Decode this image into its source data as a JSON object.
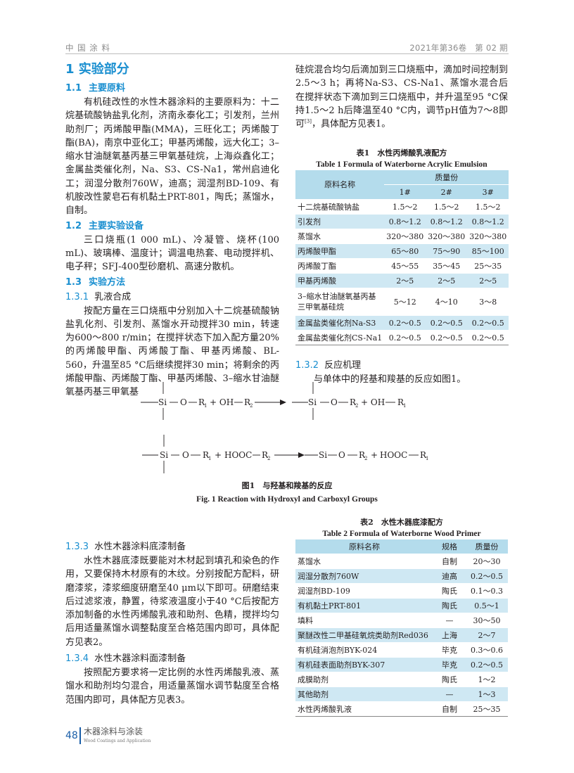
{
  "header": {
    "journal": "中 国 涂 料",
    "issue": "2021年第36卷　第 02 期"
  },
  "section1": {
    "title": "1  实验部分"
  },
  "s1_1": {
    "num": "1.1",
    "title": "主要原料",
    "para": "有机硅改性的水性木器涂料的主要原料为：十二烷基硫酸钠盐乳化剂，济南永泰化工；引发剂，兰州助剂厂；丙烯酸甲酯(MMA)，三旺化工；丙烯酸丁酯(BA)，南京中亚化工；甲基丙烯酸，远大化工；3–缩水甘油醚氧基丙基三甲氧基硅烷，上海焱鑫化工；金属盐类催化剂，Na、S3、CS-Na1，常州启迪化工；润湿分散剂760W，迪高；润湿剂BD-109、有机胺改性蒙皂石有机黏土PRT-801，陶氏；蒸馏水，自制。"
  },
  "s1_2": {
    "num": "1.2",
    "title": "主要实验设备",
    "para": "三口烧瓶(1 000 mL)、冷凝管、烧杯(100 mL)、玻璃棒、温度计；调温电热套、电动搅拌机、电子秤；SFJ-400型砂磨机、高速分散机。"
  },
  "s1_3": {
    "num": "1.3",
    "title": "实验方法"
  },
  "s1_3_1": {
    "num": "1.3.1",
    "title": "乳液合成",
    "para": "按配方量在三口烧瓶中分别加入十二烷基硫酸钠盐乳化剂、引发剂、蒸馏水开动搅拌30 min，转速为600～800 r/min；在搅拌状态下加入配方量20%的丙烯酸甲酯、丙烯酸丁酯、甲基丙烯酸、BL-560，升温至85 °C后继续搅拌30 min；将剩余的丙烯酸甲酯、丙烯酸丁酯、甲基丙烯酸、3–缩水甘油醚氧基丙基三甲氧基",
    "para_cont_a": "硅烷混合均匀后滴加到三口烧瓶中，滴加时间控制到2.5～3 h；再将Na-S3、CS-Na1、蒸馏水混合后在搅拌状态下滴加到三口烧瓶中，并升温至95 °C保持1.5～2 h后降温至40 °C内，调节pH值为7～8即可",
    "cite": "[3]",
    "para_cont_b": "，具体配方见表1。"
  },
  "table1": {
    "title_cn": "表1　水性丙烯酸乳液配方",
    "title_en": "Table 1   Formula of Waterborne Acrylic Emulsion",
    "col_name": "原料名称",
    "col_group": "质量份",
    "cols": [
      "1#",
      "2#",
      "3#"
    ],
    "rows": [
      [
        "十二烷基硫酸钠盐",
        "1.5～2",
        "1.5～2",
        "1.5～2"
      ],
      [
        "引发剂",
        "0.8～1.2",
        "0.8～1.2",
        "0.8～1.2"
      ],
      [
        "蒸馏水",
        "320～380",
        "320～380",
        "320～380"
      ],
      [
        "丙烯酸甲酯",
        "65～80",
        "75～90",
        "85～100"
      ],
      [
        "丙烯酸丁酯",
        "45～55",
        "35～45",
        "25～35"
      ],
      [
        "甲基丙烯酸",
        "2～5",
        "2～5",
        "2～5"
      ],
      [
        "3–缩水甘油醚氧基丙基三甲氧基硅烷",
        "5～12",
        "4～10",
        "3～8"
      ],
      [
        "金属盐类催化剂Na-S3",
        "0.2～0.5",
        "0.2～0.5",
        "0.2～0.5"
      ],
      [
        "金属盐类催化剂CS-Na1",
        "0.2～0.5",
        "0.2～0.5",
        "0.2～0.5"
      ]
    ]
  },
  "s1_3_2": {
    "num": "1.3.2",
    "title": "反应机理",
    "para": "与单体中的羟基和羧基的反应如图1。"
  },
  "figure1": {
    "eq1": {
      "si": "Si",
      "o": "O",
      "r1": "R",
      "r2": "R",
      "s1": "1",
      "s2": "2",
      "plus_oh": "+ OH",
      "p_si": "Si",
      "p_o": "O",
      "p_r2": "R",
      "p_s2": "2",
      "p_plus_oh": "+ OH",
      "p_r1": "R",
      "p_s1": "1"
    },
    "eq2": {
      "si": "Si",
      "o": "O",
      "r1": "R",
      "s1": "1",
      "plus": "+",
      "hooc": "HOOC",
      "r2": "R",
      "s2": "2",
      "p_si": "Si",
      "p_o": "O",
      "p_r2": "R",
      "p_s2": "2",
      "p_plus": "+",
      "p_hooc": "HOOC",
      "p_r1": "R",
      "p_s1": "1"
    },
    "caption_cn": "图1　与羟基和羧基的反应",
    "caption_en": "Fig. 1   Reaction with Hydroxyl and Carboxyl Groups"
  },
  "table2": {
    "title_cn": "表2　水性木器底漆配方",
    "title_en": "Table 2   Formula of Waterborne Wood Primer",
    "cols": [
      "原料名称",
      "规格",
      "质量份"
    ],
    "rows": [
      [
        "蒸馏水",
        "自制",
        "20～30"
      ],
      [
        "润湿分散剂760W",
        "迪高",
        "0.2～0.5"
      ],
      [
        "润湿剂BD-109",
        "陶氏",
        "0.1～0.3"
      ],
      [
        "有机黏土PRT-801",
        "陶氏",
        "0.5～1"
      ],
      [
        "填料",
        "—",
        "30～50"
      ],
      [
        "聚醚改性二甲基硅氧烷类助剂Red036",
        "上海",
        "2～7"
      ],
      [
        "有机硅消泡剂BYK-024",
        "毕克",
        "0.3～0.6"
      ],
      [
        "有机硅表面助剂BYK-307",
        "毕克",
        "0.2～0.5"
      ],
      [
        "成膜助剂",
        "陶氏",
        "1～2"
      ],
      [
        "其他助剂",
        "—",
        "1～3"
      ],
      [
        "水性丙烯酸乳液",
        "自制",
        "25～35"
      ]
    ]
  },
  "s1_3_3": {
    "num": "1.3.3",
    "title": "水性木器涂料底漆制备",
    "para": "水性木器底漆既要能对木材起到填孔和染色的作用，又要保持木材原有的木纹。分别按配方配料，研磨漆浆，漆浆细度研磨至40 μm以下即可。研磨结束后过滤浆液，静置，待浆液温度小于40 °C后按配方添加制备的水性丙烯酸乳液和助剂、色精，搅拌均匀后用适量蒸馏水调整黏度至合格范围内即可，具体配方见表2。"
  },
  "s1_3_4": {
    "num": "1.3.4",
    "title": "水性木器涂料面漆制备",
    "para": "按照配方要求将一定比例的水性丙烯酸乳液、蒸馏水和助剂均匀混合，用适量蒸馏水调节黏度至合格范围内即可，具体配方见表3。"
  },
  "footer": {
    "page": "48",
    "journal_cn": "木器涂料与涂装",
    "journal_en": "Wood Coatings and Application"
  },
  "colors": {
    "heading": "#1a8fd0",
    "table_header": "#b4dcec",
    "table_shade": "#cfe8f3"
  }
}
